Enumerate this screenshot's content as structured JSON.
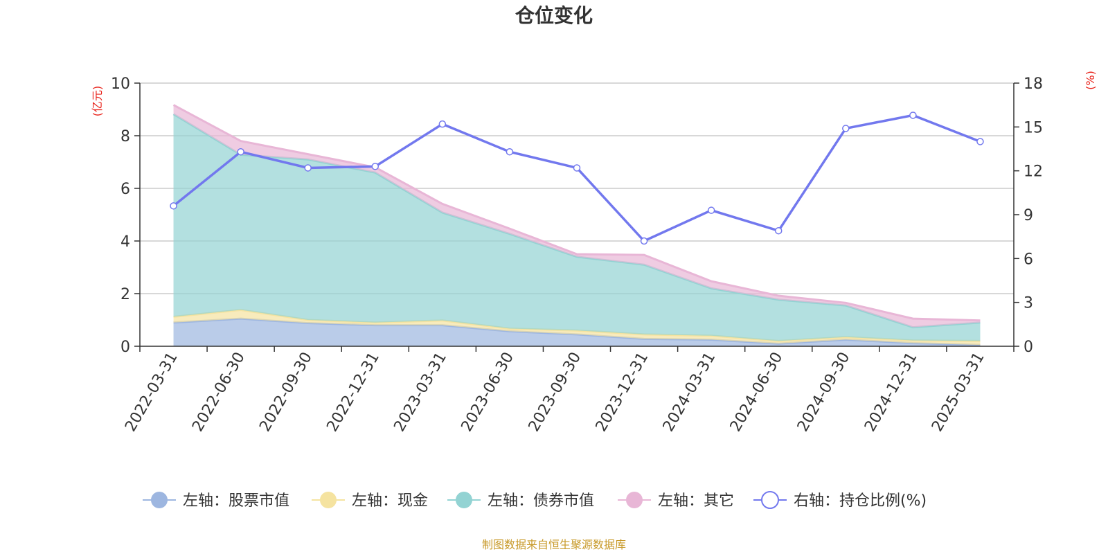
{
  "chart_data": {
    "type": "area",
    "title": "仓位变化",
    "y_left_unit": "(亿元)",
    "y_right_unit": "(%)",
    "x": [
      "2022-03-31",
      "2022-06-30",
      "2022-09-30",
      "2022-12-31",
      "2023-03-31",
      "2023-06-30",
      "2023-09-30",
      "2023-12-31",
      "2024-03-31",
      "2024-06-30",
      "2024-09-30",
      "2024-12-31",
      "2025-03-31"
    ],
    "y_left": {
      "min": 0,
      "max": 10,
      "ticks": [
        0,
        2,
        4,
        6,
        8,
        10
      ]
    },
    "y_right": {
      "min": 0,
      "max": 18,
      "ticks": [
        0,
        3,
        6,
        9,
        12,
        15,
        18
      ]
    },
    "grid": true,
    "legend_position": "bottom",
    "stacked": true,
    "series": [
      {
        "name": "左轴：股票市值",
        "axis": "left",
        "type": "area",
        "color": "#9db6e0",
        "values": [
          0.9,
          1.05,
          0.88,
          0.8,
          0.8,
          0.57,
          0.45,
          0.28,
          0.25,
          0.1,
          0.25,
          0.12,
          0.05
        ]
      },
      {
        "name": "左轴：现金",
        "axis": "left",
        "type": "area",
        "color": "#f5e3a0",
        "values": [
          0.22,
          0.33,
          0.12,
          0.1,
          0.18,
          0.1,
          0.15,
          0.17,
          0.15,
          0.1,
          0.1,
          0.1,
          0.15
        ]
      },
      {
        "name": "左轴：债券市值",
        "axis": "left",
        "type": "area",
        "color": "#93d3d3",
        "values": [
          7.7,
          5.9,
          6.1,
          5.7,
          4.1,
          3.6,
          2.8,
          2.65,
          1.8,
          1.57,
          1.2,
          0.5,
          0.7
        ]
      },
      {
        "name": "左轴：其它",
        "axis": "left",
        "type": "area",
        "color": "#e8b6d6",
        "values": [
          0.35,
          0.52,
          0.2,
          0.2,
          0.33,
          0.2,
          0.1,
          0.37,
          0.27,
          0.15,
          0.1,
          0.33,
          0.08
        ]
      },
      {
        "name": "右轴：持仓比例(%)",
        "axis": "right",
        "type": "line",
        "color": "#7278ee",
        "values": [
          9.6,
          13.3,
          12.2,
          12.3,
          15.2,
          13.3,
          12.2,
          7.2,
          9.3,
          7.9,
          14.9,
          15.8,
          14.0
        ]
      }
    ]
  },
  "footer": "制图数据来自恒生聚源数据库",
  "colors": {
    "axis_unit": "#e8221a",
    "footer": "#c89a2a",
    "grid": "#cccccc",
    "text": "#333333"
  }
}
